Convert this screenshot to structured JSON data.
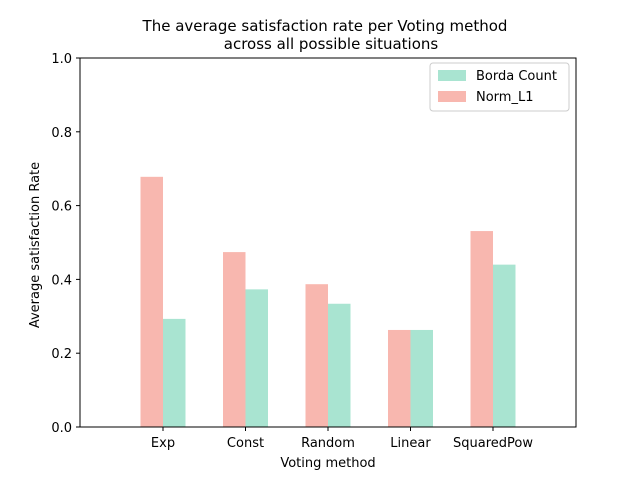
{
  "chart_data": {
    "type": "bar",
    "title_line1": "The average satisfaction rate per Voting method",
    "title_line2": "across all possible situations",
    "xlabel": "Voting method",
    "ylabel": "Average satisfaction Rate",
    "categories": [
      "Exp",
      "Const",
      "Random",
      "Linear",
      "SquaredPow"
    ],
    "series": [
      {
        "name": "Norm_L1",
        "values": [
          0.678,
          0.474,
          0.387,
          0.263,
          0.531
        ],
        "color": "#f8b7af"
      },
      {
        "name": "Borda Count",
        "values": [
          0.293,
          0.373,
          0.334,
          0.263,
          0.44
        ],
        "color": "#a9e4d1"
      }
    ],
    "ylim": [
      0,
      1.0
    ],
    "yticks": [
      "0.0",
      "0.2",
      "0.4",
      "0.6",
      "0.8",
      "1.0"
    ],
    "legend": {
      "position": "top-right",
      "entries": [
        "Borda Count",
        "Norm_L1"
      ]
    },
    "grid": false
  }
}
